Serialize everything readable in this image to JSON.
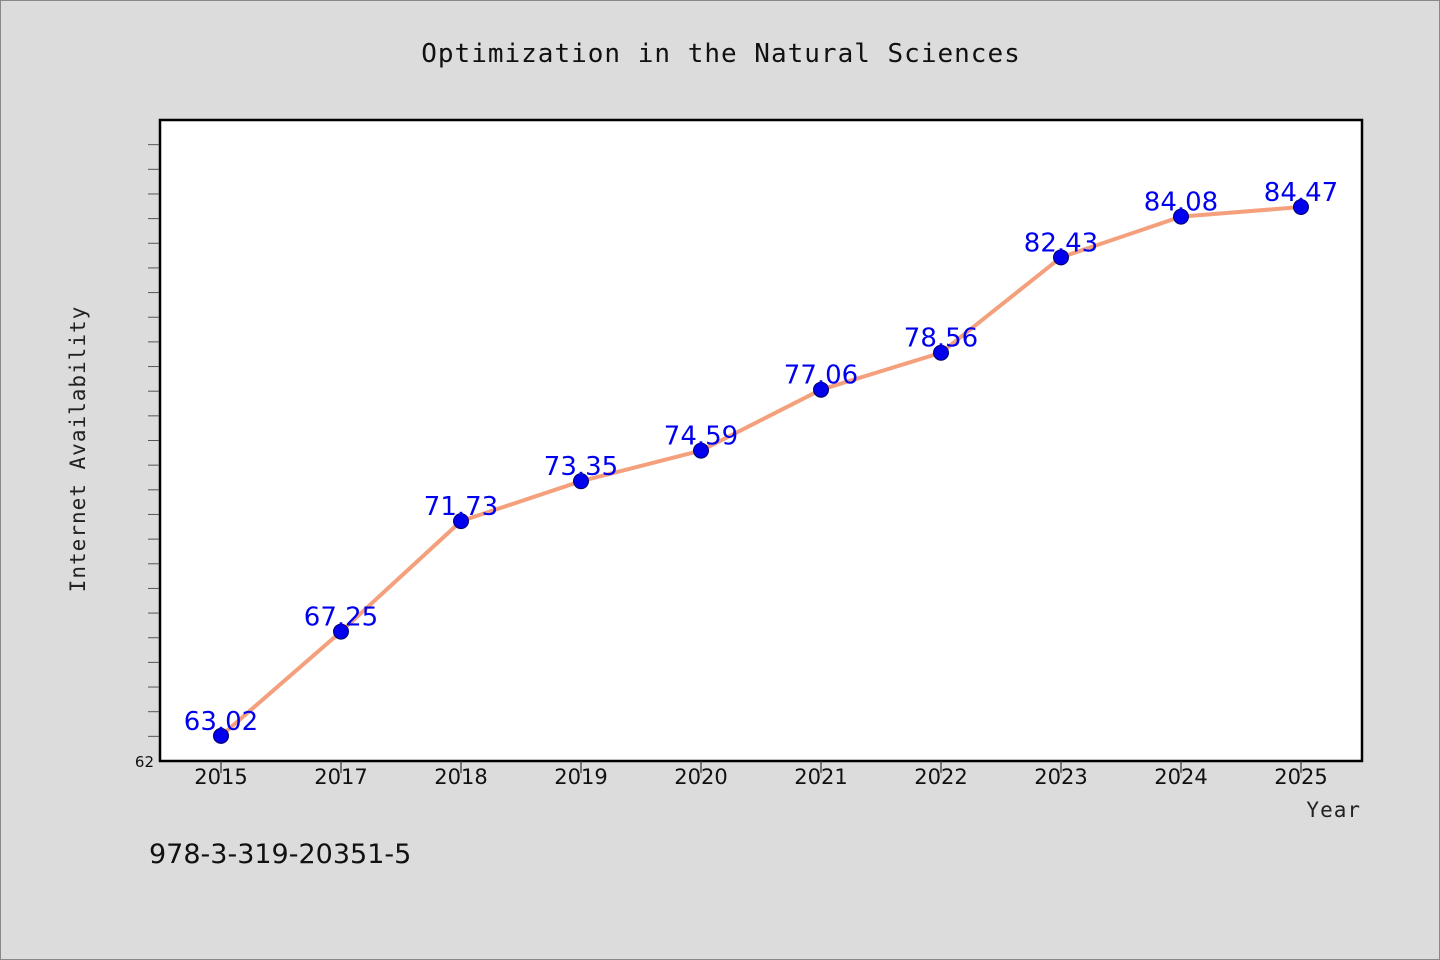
{
  "chart_data": {
    "type": "line",
    "title": "Optimization in the Natural Sciences",
    "xlabel": "Year",
    "ylabel": "Internet Availability",
    "categories": [
      "2015",
      "2017",
      "2018",
      "2019",
      "2020",
      "2021",
      "2022",
      "2023",
      "2024",
      "2025"
    ],
    "series": [
      {
        "values": [
          63.02,
          67.25,
          71.73,
          73.35,
          74.59,
          77.06,
          78.56,
          82.43,
          84.08,
          84.47
        ],
        "labels": [
          "63.02",
          "67.25",
          "71.73",
          "73.35",
          "74.59",
          "77.06",
          "78.56",
          "82.43",
          "84.08",
          "84.47"
        ]
      }
    ],
    "y_tick_labels": [
      "62"
    ],
    "ylim": [
      62,
      88
    ],
    "y_minor_step": 1,
    "grid": false,
    "line_color": "#f4a07c",
    "marker_color": "#0000ee",
    "label_color": "#0000ee"
  },
  "footer": {
    "text": "978-3-319-20351-5"
  }
}
